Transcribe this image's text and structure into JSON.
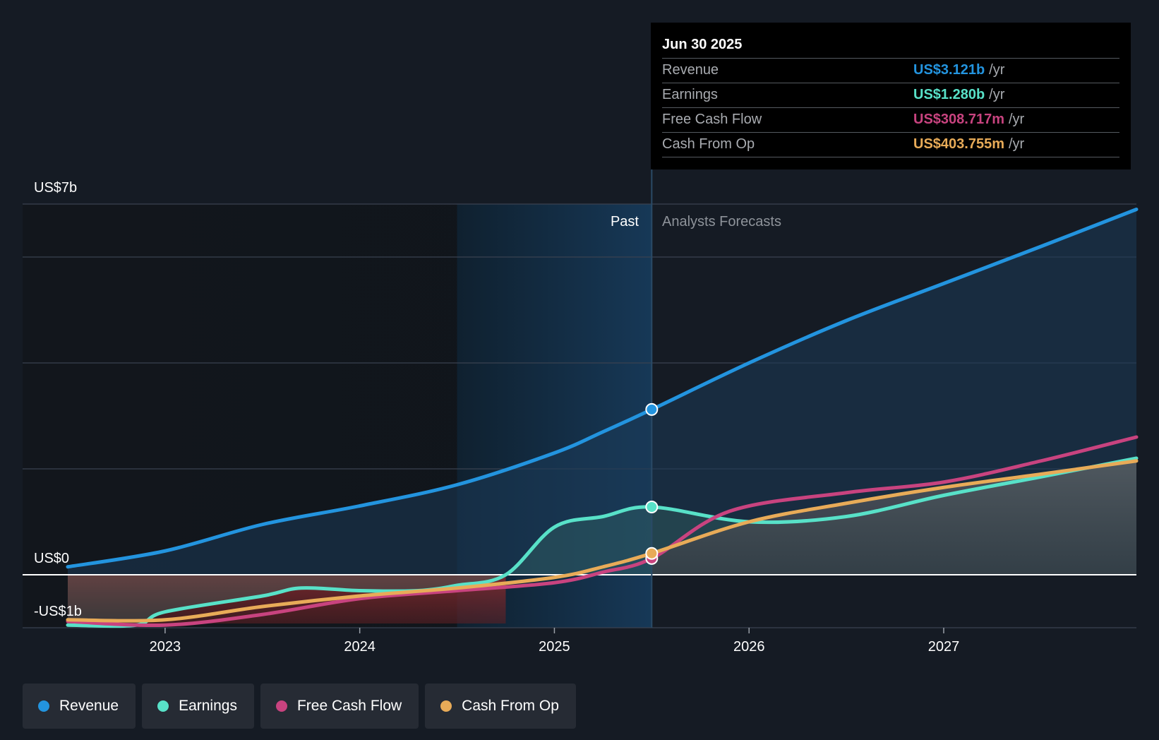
{
  "tooltip": {
    "date": "Jun 30 2025",
    "rows": [
      {
        "label": "Revenue",
        "value": "US$3.121b",
        "unit": "/yr",
        "color": "#2394df"
      },
      {
        "label": "Earnings",
        "value": "US$1.280b",
        "unit": "/yr",
        "color": "#58e1c8"
      },
      {
        "label": "Free Cash Flow",
        "value": "US$308.717m",
        "unit": "/yr",
        "color": "#c8437f"
      },
      {
        "label": "Cash From Op",
        "value": "US$403.755m",
        "unit": "/yr",
        "color": "#e8ab58"
      }
    ]
  },
  "zones": {
    "past_label": "Past",
    "forecast_label": "Analysts Forecasts"
  },
  "legend": [
    {
      "label": "Revenue",
      "color": "#2394df"
    },
    {
      "label": "Earnings",
      "color": "#58e1c8"
    },
    {
      "label": "Free Cash Flow",
      "color": "#c8437f"
    },
    {
      "label": "Cash From Op",
      "color": "#e8ab58"
    }
  ],
  "chart_data": {
    "type": "line",
    "title": "",
    "xlabel": "",
    "ylabel": "",
    "y_axis_labels": [
      "US$7b",
      "US$0",
      "-US$1b"
    ],
    "ylim": [
      -1,
      7
    ],
    "x_ticks": [
      2023,
      2024,
      2025,
      2026,
      2027
    ],
    "xlim": [
      2022.5,
      2027.99
    ],
    "past_end": 2025.5,
    "highlight_start": 2024.5,
    "series": [
      {
        "name": "Revenue",
        "color": "#2394df",
        "x": [
          2022.5,
          2023.0,
          2023.5,
          2024.0,
          2024.5,
          2025.0,
          2025.25,
          2025.5,
          2026.0,
          2026.5,
          2027.0,
          2027.5,
          2027.99
        ],
        "values": [
          0.15,
          0.45,
          0.95,
          1.3,
          1.7,
          2.3,
          2.7,
          3.121,
          4.0,
          4.8,
          5.5,
          6.2,
          6.9
        ]
      },
      {
        "name": "Earnings",
        "color": "#58e1c8",
        "x": [
          2022.5,
          2022.85,
          2023.0,
          2023.5,
          2023.7,
          2024.0,
          2024.3,
          2024.5,
          2024.75,
          2025.0,
          2025.25,
          2025.5,
          2026.0,
          2026.5,
          2027.0,
          2027.5,
          2027.99
        ],
        "values": [
          -0.95,
          -0.95,
          -0.7,
          -0.4,
          -0.25,
          -0.3,
          -0.3,
          -0.2,
          0.0,
          0.9,
          1.1,
          1.28,
          1.0,
          1.1,
          1.5,
          1.85,
          2.2
        ]
      },
      {
        "name": "Free Cash Flow",
        "color": "#c8437f",
        "x": [
          2022.5,
          2023.0,
          2023.5,
          2024.0,
          2024.5,
          2025.0,
          2025.25,
          2025.5,
          2025.9,
          2026.5,
          2027.0,
          2027.5,
          2027.99
        ],
        "values": [
          -0.88,
          -0.95,
          -0.75,
          -0.45,
          -0.3,
          -0.15,
          0.05,
          0.309,
          1.2,
          1.55,
          1.75,
          2.15,
          2.6
        ]
      },
      {
        "name": "Cash From Op",
        "color": "#e8ab58",
        "x": [
          2022.5,
          2023.0,
          2023.5,
          2024.0,
          2024.5,
          2025.0,
          2025.25,
          2025.5,
          2026.0,
          2026.5,
          2027.0,
          2027.5,
          2027.99
        ],
        "values": [
          -0.85,
          -0.85,
          -0.6,
          -0.4,
          -0.25,
          -0.05,
          0.15,
          0.404,
          1.0,
          1.35,
          1.65,
          1.9,
          2.15
        ]
      }
    ]
  }
}
